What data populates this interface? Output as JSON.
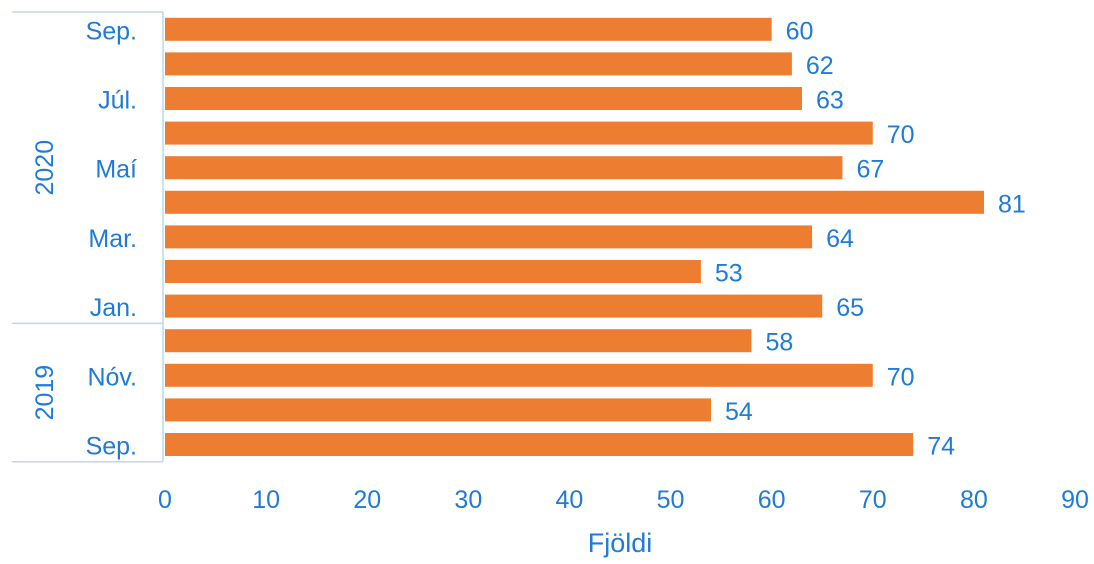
{
  "chart_data": {
    "type": "bar",
    "orientation": "horizontal",
    "xlabel": "Fjöldi",
    "xlim": [
      0,
      90
    ],
    "xticks": [
      0,
      10,
      20,
      30,
      40,
      50,
      60,
      70,
      80,
      90
    ],
    "grid": false,
    "legend": "none",
    "colors": {
      "bar": "#ED7D31",
      "text": "#1F7BD8",
      "axis": "#BDD7EE"
    },
    "groups": [
      {
        "label": "2020",
        "size": 9
      },
      {
        "label": "2019",
        "size": 4
      }
    ],
    "categories": [
      "Sep.",
      "",
      "Júl.",
      "",
      "Maí",
      "",
      "Mar.",
      "",
      "Jan.",
      "",
      "Nóv.",
      "",
      "Sep."
    ],
    "values": [
      60,
      62,
      63,
      70,
      67,
      81,
      64,
      53,
      65,
      58,
      70,
      54,
      74
    ]
  }
}
